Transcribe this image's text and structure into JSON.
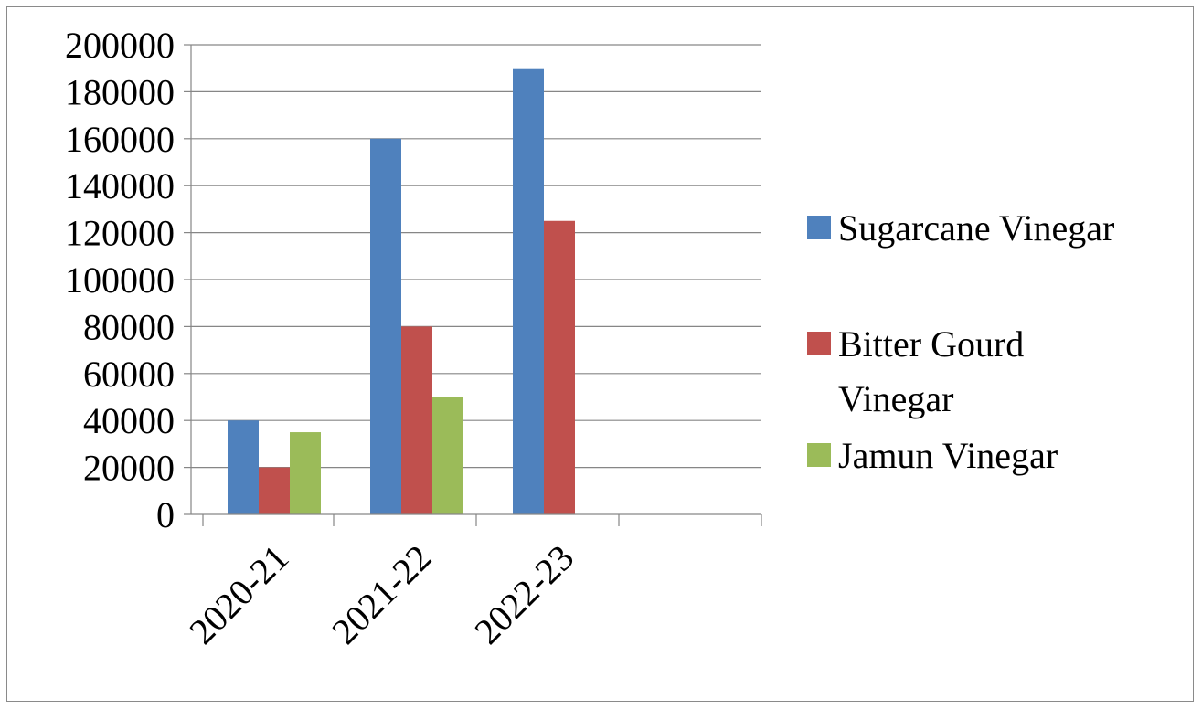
{
  "chart_data": {
    "type": "bar",
    "categories": [
      "2020-21",
      "2021-22",
      "2022-23",
      ""
    ],
    "series": [
      {
        "name": "Sugarcane Vinegar",
        "values": [
          40000,
          160000,
          190000,
          null
        ],
        "color": "#4f81bd"
      },
      {
        "name": "Bitter Gourd Vinegar",
        "values": [
          20000,
          80000,
          125000,
          null
        ],
        "color": "#c0504d"
      },
      {
        "name": "Jamun Vinegar",
        "values": [
          35000,
          50000,
          null,
          null
        ],
        "color": "#9bbb59"
      }
    ],
    "y_ticks": [
      "0",
      "20000",
      "40000",
      "60000",
      "80000",
      "100000",
      "120000",
      "140000",
      "160000",
      "180000",
      "200000"
    ],
    "ylim": [
      0,
      200000
    ],
    "grid": "horizontal",
    "legend": {
      "position": "right",
      "entries": [
        {
          "lines": [
            "Sugarcane Vinegar"
          ]
        },
        {
          "lines": [
            "Bitter Gourd",
            "Vinegar"
          ]
        },
        {
          "lines": [
            "Jamun Vinegar"
          ]
        }
      ]
    },
    "title": "",
    "xlabel": "",
    "ylabel": ""
  }
}
